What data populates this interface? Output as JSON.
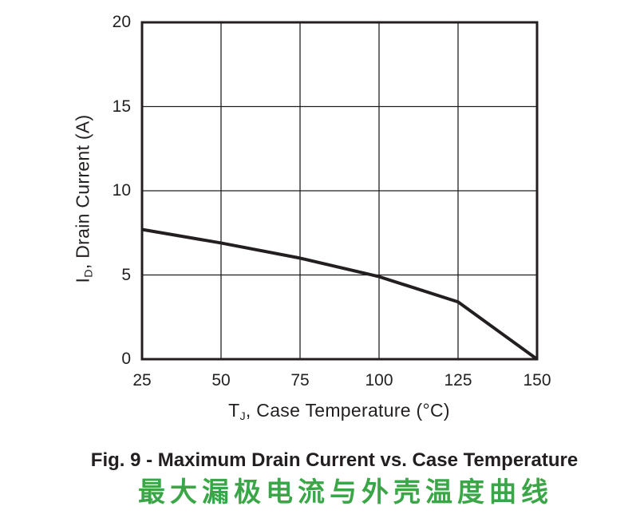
{
  "figure": {
    "caption_en": "Fig. 9 - Maximum Drain Current vs. Case Temperature",
    "caption_zh": "最大漏极电流与外壳温度曲线",
    "caption_en_color": "#231f20",
    "caption_zh_color": "#3aa648"
  },
  "chart_data": {
    "type": "line",
    "title": "Fig. 9 - Maximum Drain Current vs. Case Temperature",
    "subtitle_zh": "最大漏极电流与外壳温度曲线",
    "x": [
      25,
      50,
      75,
      100,
      125,
      150
    ],
    "series": [
      {
        "name": "maximum-drain-current",
        "values": [
          7.7,
          6.9,
          6.0,
          4.9,
          3.4,
          0
        ]
      }
    ],
    "xlabel": {
      "pre": "T",
      "sub": "J",
      "post": ", Case Temperature (°C)"
    },
    "ylabel": {
      "pre": "I",
      "sub": "D",
      "post": ", Drain Current (A)"
    },
    "xlim": [
      25,
      150
    ],
    "ylim": [
      0,
      20
    ],
    "xticks": [
      "25",
      "50",
      "75",
      "100",
      "125",
      "150"
    ],
    "yticks": [
      "0",
      "5",
      "10",
      "15",
      "20"
    ],
    "grid": true,
    "legend": false,
    "line_color": "#231f20",
    "grid_color": "#231f20",
    "frame_color": "#231f20",
    "background_color": "#ffffff"
  }
}
